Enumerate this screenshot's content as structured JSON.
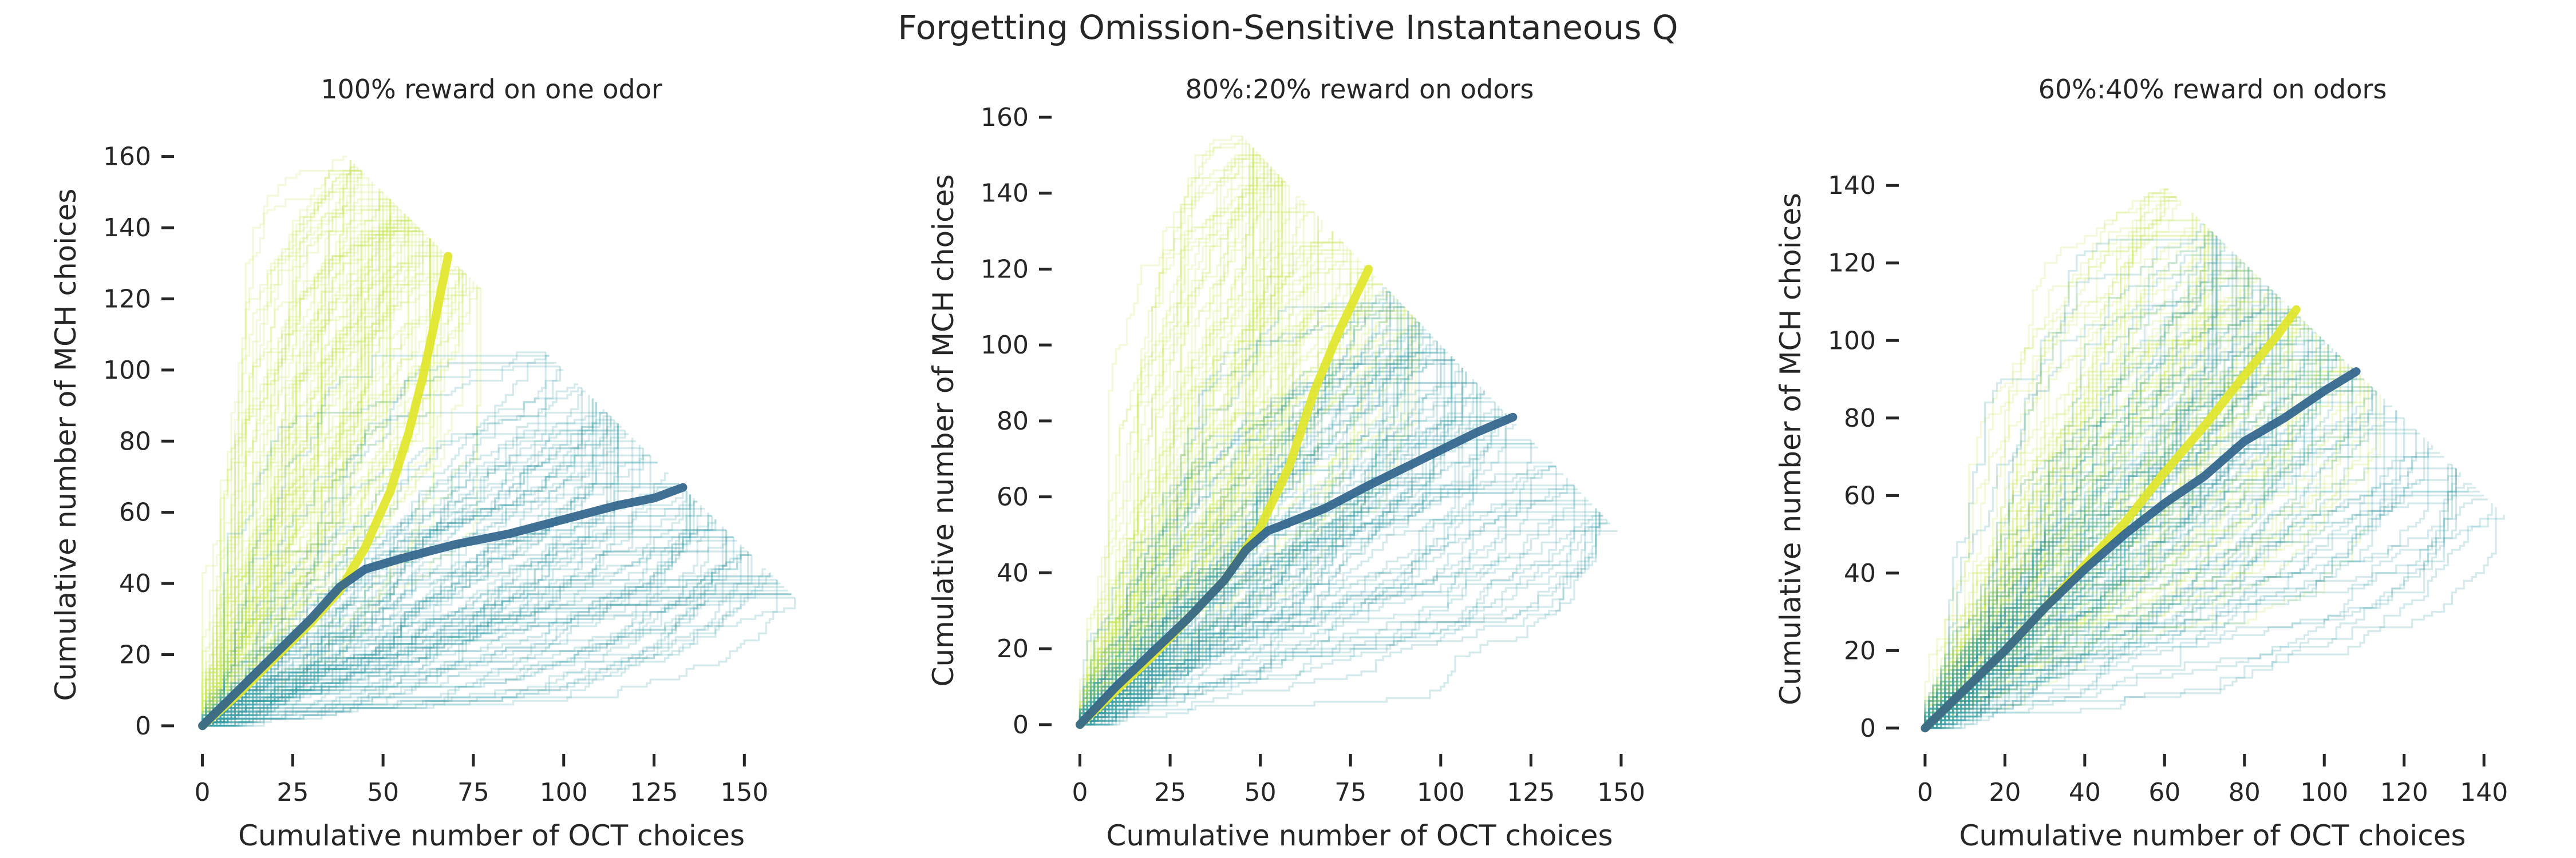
{
  "figure": {
    "title": "Forgetting Omission-Sensitive Instantaneous Q"
  },
  "colors": {
    "group_a": "#e2e62a",
    "group_b": "#31648c",
    "trace_a_light": "#c8e65a",
    "trace_b_light": "#3aa0a8",
    "text": "#262626"
  },
  "chart_data": [
    {
      "type": "line",
      "title": "100% reward on one odor",
      "xlabel": "Cumulative number of OCT choices",
      "ylabel": "Cumulative number of MCH choices",
      "xlim": [
        -5,
        165
      ],
      "ylim": [
        -5,
        163
      ],
      "xticks": [
        0,
        25,
        50,
        75,
        100,
        125,
        150
      ],
      "yticks": [
        0,
        20,
        40,
        60,
        80,
        100,
        120,
        140,
        160
      ],
      "xtick_labels": [
        "0",
        "25",
        "50",
        "75",
        "100",
        "125",
        "150"
      ],
      "ytick_labels": [
        "0",
        "20",
        "40",
        "60",
        "80",
        "100",
        "120",
        "140",
        "160"
      ],
      "grid": false,
      "legend": "none",
      "series": [
        {
          "color": "#e2e62a",
          "points": [
            [
              0,
              0
            ],
            [
              10,
              9
            ],
            [
              20,
              19
            ],
            [
              30,
              29
            ],
            [
              38,
              38
            ],
            [
              45,
              50
            ],
            [
              52,
              66
            ],
            [
              57,
              82
            ],
            [
              61,
              98
            ],
            [
              64,
              112
            ],
            [
              66,
              122
            ],
            [
              68,
              132
            ]
          ]
        },
        {
          "color": "#31648c",
          "points": [
            [
              0,
              0
            ],
            [
              10,
              10
            ],
            [
              20,
              20
            ],
            [
              30,
              30
            ],
            [
              38,
              39
            ],
            [
              45,
              44
            ],
            [
              55,
              47
            ],
            [
              70,
              51
            ],
            [
              85,
              54
            ],
            [
              100,
              58
            ],
            [
              115,
              62
            ],
            [
              125,
              64
            ],
            [
              133,
              67
            ]
          ]
        }
      ],
      "trial_traces": {
        "count_per_group": 100,
        "total_choices": 200,
        "group_a_end_x": [
          40,
          80
        ],
        "group_b_end_x": [
          95,
          165
        ]
      }
    },
    {
      "type": "line",
      "title": "80%:20% reward on odors",
      "xlabel": "Cumulative number of OCT choices",
      "ylabel": "Cumulative number of MCH choices",
      "xlim": [
        -5,
        160
      ],
      "ylim": [
        -5,
        160
      ],
      "xticks": [
        0,
        25,
        50,
        75,
        100,
        125,
        150
      ],
      "yticks": [
        0,
        20,
        40,
        60,
        80,
        100,
        120,
        140,
        160
      ],
      "xtick_labels": [
        "0",
        "25",
        "50",
        "75",
        "100",
        "125",
        "150"
      ],
      "ytick_labels": [
        "0",
        "20",
        "40",
        "60",
        "80",
        "100",
        "120",
        "140",
        "160"
      ],
      "grid": false,
      "legend": "none",
      "series": [
        {
          "color": "#e2e62a",
          "points": [
            [
              0,
              0
            ],
            [
              10,
              9
            ],
            [
              20,
              18
            ],
            [
              30,
              28
            ],
            [
              40,
              38
            ],
            [
              50,
              52
            ],
            [
              58,
              68
            ],
            [
              65,
              88
            ],
            [
              72,
              104
            ],
            [
              78,
              116
            ],
            [
              80,
              120
            ]
          ]
        },
        {
          "color": "#31648c",
          "points": [
            [
              0,
              0
            ],
            [
              10,
              10
            ],
            [
              20,
              19
            ],
            [
              30,
              28
            ],
            [
              40,
              38
            ],
            [
              46,
              46
            ],
            [
              52,
              51
            ],
            [
              60,
              54
            ],
            [
              68,
              57
            ],
            [
              80,
              63
            ],
            [
              95,
              70
            ],
            [
              110,
              77
            ],
            [
              120,
              81
            ]
          ]
        }
      ],
      "trial_traces": {
        "count_per_group": 100,
        "total_choices": 200,
        "group_a_end_x": [
          45,
          95
        ],
        "group_b_end_x": [
          85,
          150
        ]
      }
    },
    {
      "type": "line",
      "title": "60%:40% reward on odors",
      "xlabel": "Cumulative number of OCT choices",
      "ylabel": "Cumulative number of MCH choices",
      "xlim": [
        -4,
        148
      ],
      "ylim": [
        -4,
        148
      ],
      "xticks": [
        0,
        20,
        40,
        60,
        80,
        100,
        120,
        140
      ],
      "yticks": [
        0,
        20,
        40,
        60,
        80,
        100,
        120,
        140
      ],
      "xtick_labels": [
        "0",
        "20",
        "40",
        "60",
        "80",
        "100",
        "120",
        "140"
      ],
      "ytick_labels": [
        "0",
        "20",
        "40",
        "60",
        "80",
        "100",
        "120",
        "140"
      ],
      "grid": false,
      "legend": "none",
      "series": [
        {
          "color": "#e2e62a",
          "points": [
            [
              0,
              0
            ],
            [
              10,
              10
            ],
            [
              20,
              20
            ],
            [
              30,
              31
            ],
            [
              40,
              42
            ],
            [
              50,
              53
            ],
            [
              60,
              66
            ],
            [
              70,
              78
            ],
            [
              80,
              91
            ],
            [
              88,
              101
            ],
            [
              93,
              108
            ]
          ]
        },
        {
          "color": "#31648c",
          "points": [
            [
              0,
              0
            ],
            [
              10,
              10
            ],
            [
              20,
              20
            ],
            [
              30,
              31
            ],
            [
              40,
              41
            ],
            [
              50,
              50
            ],
            [
              60,
              58
            ],
            [
              70,
              65
            ],
            [
              80,
              74
            ],
            [
              90,
              80
            ],
            [
              100,
              87
            ],
            [
              108,
              92
            ]
          ]
        }
      ],
      "trial_traces": {
        "count_per_group": 100,
        "total_choices": 200,
        "group_a_end_x": [
          60,
          115
        ],
        "group_b_end_x": [
          70,
          145
        ]
      }
    }
  ]
}
